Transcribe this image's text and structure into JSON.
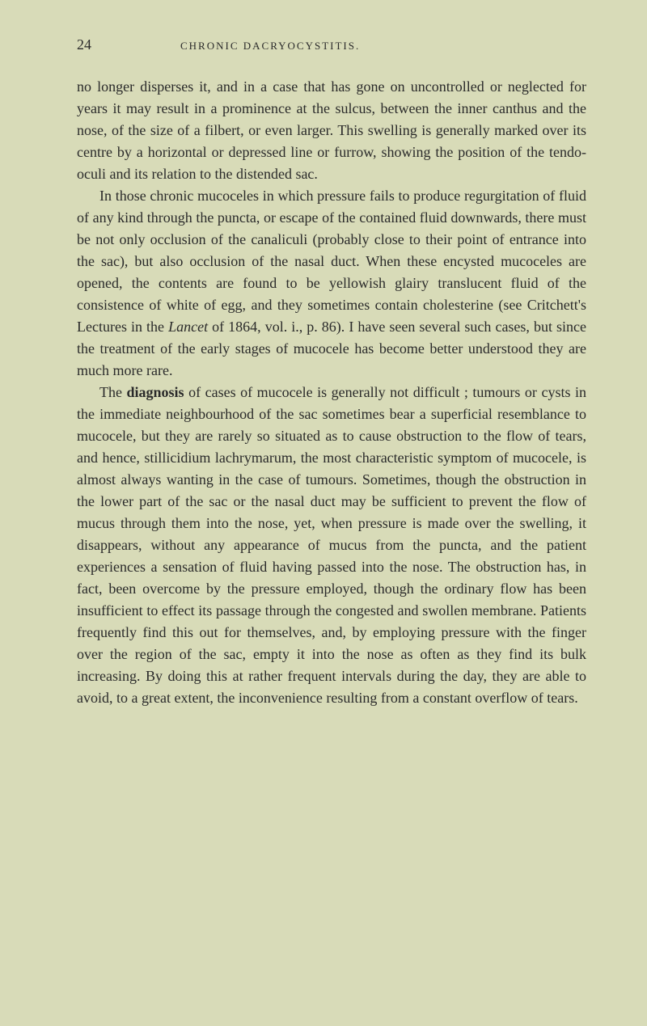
{
  "page_number": "24",
  "running_title": "CHRONIC DACRYOCYSTITIS.",
  "paragraphs": [
    {
      "indent": false,
      "text": "no longer disperses it, and in a case that has gone on uncontrolled or neglected for years it may result in a prominence at the sulcus, between the inner canthus and the nose, of the size of a filbert, or even larger. This swelling is generally marked over its centre by a horizontal or depressed line or furrow, showing the position of the tendo-oculi and its relation to the distended sac."
    },
    {
      "indent": true,
      "prefix": "In those chronic mucoceles in which pressure fails to produce regurgitation of fluid of any kind through the puncta, or escape of the contained fluid downwards, there must be not only occlusion of the canaliculi (probably close to their point of entrance into the sac), but also occlusion of the nasal duct. When these encysted mucoceles are opened, the contents are found to be yellowish glairy translucent fluid of the consistence of white of egg, and they sometimes contain cholesterine (see Critchett's Lectures in the ",
      "italic_text": "Lancet",
      "suffix": " of 1864, vol. i., p. 86). I have seen several such cases, but since the treatment of the early stages of mucocele has become better understood they are much more rare."
    },
    {
      "indent": true,
      "prefix": "The ",
      "bold_text": "diagnosis",
      "suffix": " of cases of mucocele is generally not difficult ; tumours or cysts in the immediate neighbourhood of the sac sometimes bear a superficial resemblance to mucocele, but they are rarely so situated as to cause obstruction to the flow of tears, and hence, stillicidium lachrymarum, the most characteristic symptom of mucocele, is almost always wanting in the case of tumours. Sometimes, though the obstruction in the lower part of the sac or the nasal duct may be sufficient to prevent the flow of mucus through them into the nose, yet, when pressure is made over the swelling, it disappears, without any appearance of mucus from the puncta, and the patient experiences a sensation of fluid having passed into the nose. The obstruction has, in fact, been overcome by the pressure employed, though the ordinary flow has been insufficient to effect its passage through the congested and swollen membrane. Patients frequently find this out for themselves, and, by employing pressure with the finger over the region of the sac, empty it into the nose as often as they find its bulk increasing. By doing this at rather frequent intervals during the day, they are able to avoid, to a great extent, the inconvenience resulting from a constant overflow of tears."
    }
  ],
  "colors": {
    "background": "#d8dbb8",
    "text": "#2a2a2a"
  },
  "typography": {
    "body_fontsize": 18,
    "header_fontsize": 13,
    "page_number_fontsize": 18,
    "line_height": 1.5,
    "font_family": "Georgia, Times New Roman, serif"
  }
}
